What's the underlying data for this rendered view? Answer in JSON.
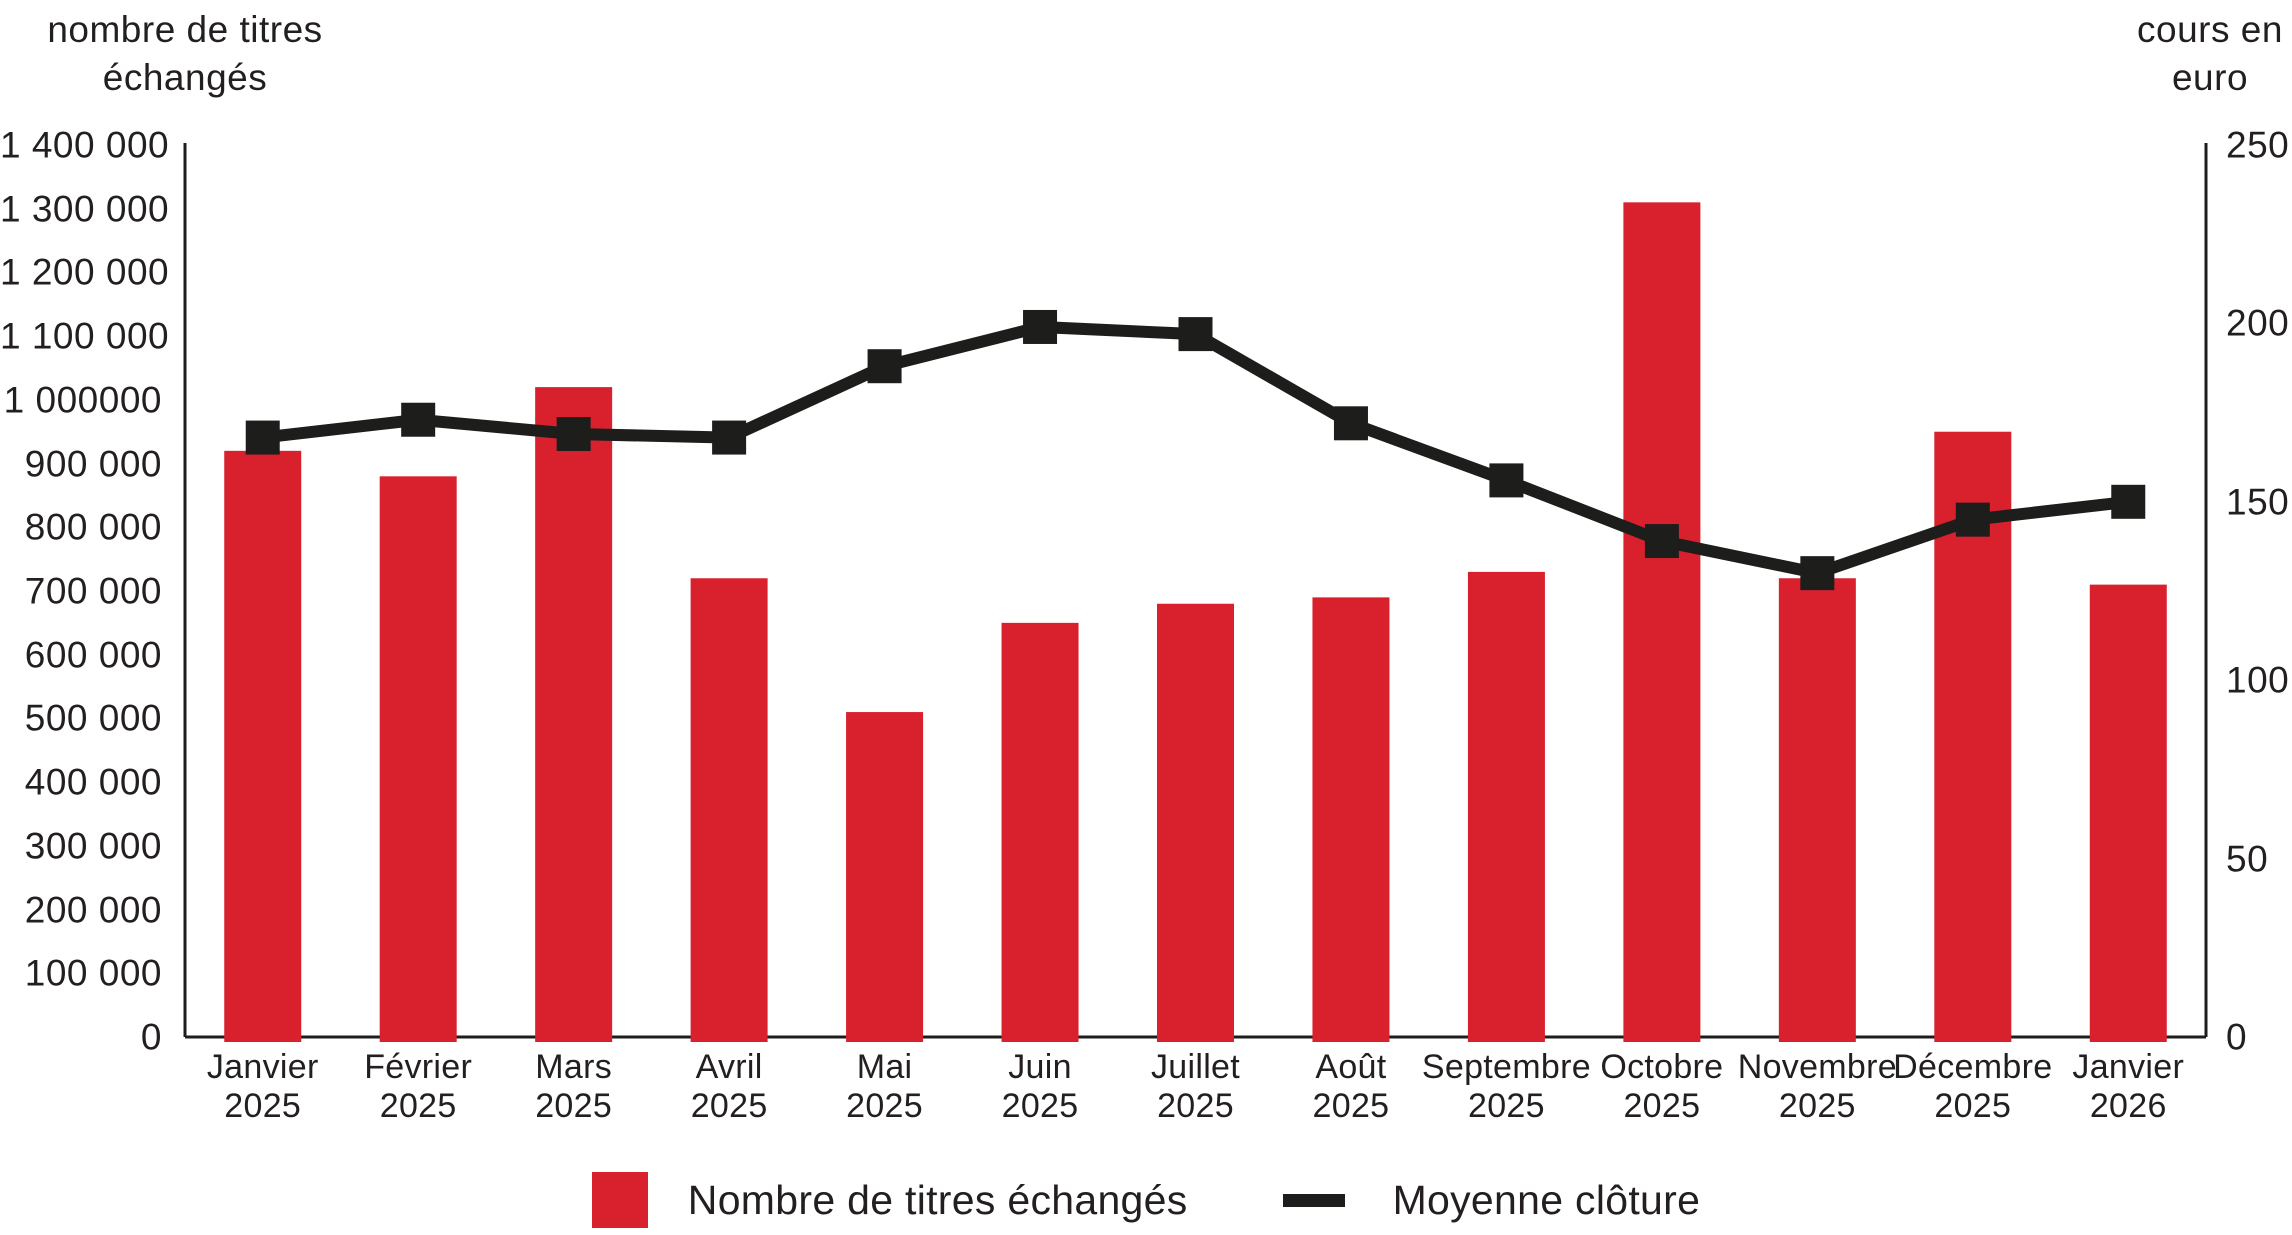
{
  "left_axis": {
    "title": "nombre de titres\néchangés",
    "ticks": [
      "1 400 000",
      "1 300 000",
      "1 200 000",
      "1 100 000",
      "1 000000",
      "900 000",
      "800 000",
      "700 000",
      "600 000",
      "500 000",
      "400 000",
      "300 000",
      "200 000",
      "100 000",
      "0"
    ]
  },
  "right_axis": {
    "title": "cours en\neuro",
    "ticks": [
      "250",
      "200",
      "150",
      "100",
      "50",
      "0"
    ]
  },
  "chart_data": {
    "type": "bar+line combo",
    "categories": [
      "Janvier\n2025",
      "Février\n2025",
      "Mars\n2025",
      "Avril\n2025",
      "Mai\n2025",
      "Juin\n2025",
      "Juillet\n2025",
      "Août\n2025",
      "Septembre\n2025",
      "Octobre\n2025",
      "Novembre\n2025",
      "Décembre\n2025",
      "Janvier\n2026"
    ],
    "series": [
      {
        "name": "Nombre de titres échangés",
        "type": "bar",
        "axis": "left",
        "color": "#d9212e",
        "values": [
          920000,
          880000,
          1020000,
          720000,
          510000,
          650000,
          680000,
          690000,
          730000,
          1310000,
          720000,
          950000,
          710000
        ]
      },
      {
        "name": "Moyenne clôture",
        "type": "line",
        "axis": "right",
        "color": "#1d1d1b",
        "marker": "square",
        "values": [
          168,
          173,
          169,
          168,
          188,
          199,
          197,
          172,
          156,
          139,
          130,
          145,
          150
        ]
      }
    ],
    "left_ylim": [
      0,
      1400000
    ],
    "right_ylim": [
      0,
      250
    ],
    "grid": false,
    "legend_position": "bottom"
  },
  "legend": {
    "items": [
      {
        "label": "Nombre de titres échangés",
        "swatch": "square",
        "color": "#d9212e"
      },
      {
        "label": "Moyenne clôture",
        "swatch": "dash",
        "color": "#1d1d1b"
      }
    ]
  },
  "colors": {
    "bar": "#d9212e",
    "line": "#1d1d1b",
    "text": "#231f20",
    "axis": "#1d1d1b",
    "background": "#ffffff"
  }
}
